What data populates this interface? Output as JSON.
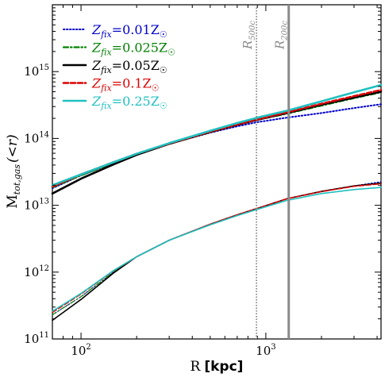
{
  "chart_data": {
    "type": "line",
    "xlabel_prefix": "R",
    "xlabel_unit": "[kpc]",
    "ylabel_main": "M",
    "ylabel_sub": "tot,gas",
    "ylabel_tail": "(<r)",
    "xscale": "log",
    "yscale": "log",
    "xlim": [
      70,
      4200
    ],
    "ylim": [
      100000000000.0,
      1e+16
    ],
    "x_ticks": [
      {
        "value": 100,
        "base": "10",
        "exp": "2"
      },
      {
        "value": 1000,
        "base": "10",
        "exp": "3"
      }
    ],
    "y_ticks": [
      {
        "value": 100000000000.0,
        "base": "10",
        "exp": "11"
      },
      {
        "value": 1000000000000.0,
        "base": "10",
        "exp": "12"
      },
      {
        "value": 10000000000000.0,
        "base": "10",
        "exp": "13"
      },
      {
        "value": 100000000000000.0,
        "base": "10",
        "exp": "14"
      },
      {
        "value": 1000000000000000.0,
        "base": "10",
        "exp": "15"
      }
    ],
    "vlines": [
      {
        "label_main": "R",
        "label_sub": "500c",
        "x": 890,
        "style": "dotted",
        "color": "#8a8a8a"
      },
      {
        "label_main": "R",
        "label_sub": "200c",
        "x": 1330,
        "style": "solid",
        "color": "#8a8a8a"
      }
    ],
    "legend_position": "upper-left",
    "x": [
      70,
      100,
      150,
      200,
      300,
      500,
      700,
      900,
      1300,
      2000,
      3000,
      4200
    ],
    "series": [
      {
        "name": "Z_fix=0.01Z☉",
        "legend_var": "Z",
        "legend_sub": "fix",
        "legend_value": "=0.01Z",
        "color": "#0000cc",
        "style": "dotted",
        "width": 2,
        "total": [
          18000000000000.0,
          28000000000000.0,
          43000000000000.0,
          58000000000000.0,
          83000000000000.0,
          122000000000000.0,
          152000000000000.0,
          175000000000000.0,
          205000000000000.0,
          240000000000000.0,
          285000000000000.0,
          325000000000000.0
        ],
        "gas": [
          230000000000.0,
          430000000000.0,
          1000000000000.0,
          1700000000000.0,
          3000000000000.0,
          5200000000000.0,
          7200000000000.0,
          9000000000000.0,
          12500000000000.0,
          16000000000000.0,
          19500000000000.0,
          22500000000000.0
        ]
      },
      {
        "name": "Z_fix=0.025Z☉",
        "legend_var": "Z",
        "legend_sub": "fix",
        "legend_value": "=0.025Z",
        "color": "#008000",
        "style": "dashdot",
        "width": 2.2,
        "total": [
          18500000000000.0,
          28000000000000.0,
          43000000000000.0,
          58000000000000.0,
          83000000000000.0,
          124000000000000.0,
          160000000000000.0,
          190000000000000.0,
          235000000000000.0,
          310000000000000.0,
          400000000000000.0,
          490000000000000.0
        ],
        "gas": [
          230000000000.0,
          430000000000.0,
          1000000000000.0,
          1700000000000.0,
          3000000000000.0,
          5200000000000.0,
          7200000000000.0,
          9000000000000.0,
          12500000000000.0,
          16000000000000.0,
          19500000000000.0,
          21500000000000.0
        ]
      },
      {
        "name": "Z_fix=0.05Z☉",
        "legend_var": "Z",
        "legend_sub": "fix",
        "legend_value": "=0.05Z",
        "color": "#000000",
        "style": "solid",
        "width": 2.6,
        "total": [
          15000000000000.0,
          25000000000000.0,
          41000000000000.0,
          57000000000000.0,
          83000000000000.0,
          125000000000000.0,
          160000000000000.0,
          190000000000000.0,
          240000000000000.0,
          320000000000000.0,
          410000000000000.0,
          500000000000000.0
        ],
        "gas": [
          190000000000.0,
          390000000000.0,
          970000000000.0,
          1700000000000.0,
          3000000000000.0,
          5200000000000.0,
          7200000000000.0,
          9000000000000.0,
          12500000000000.0,
          16200000000000.0,
          19500000000000.0,
          21500000000000.0
        ]
      },
      {
        "name": "Z_fix=0.1Z☉",
        "legend_var": "Z",
        "legend_sub": "fix",
        "legend_value": "=0.1Z",
        "color": "#dd0000",
        "style": "dashed",
        "width": 2.6,
        "total": [
          19000000000000.0,
          29000000000000.0,
          44000000000000.0,
          59000000000000.0,
          84000000000000.0,
          126000000000000.0,
          162000000000000.0,
          193000000000000.0,
          245000000000000.0,
          330000000000000.0,
          430000000000000.0,
          530000000000000.0
        ],
        "gas": [
          250000000000.0,
          470000000000.0,
          1050000000000.0,
          1700000000000.0,
          3000000000000.0,
          5200000000000.0,
          7200000000000.0,
          9000000000000.0,
          12500000000000.0,
          16000000000000.0,
          19200000000000.0,
          21000000000000.0
        ]
      },
      {
        "name": "Z_fix=0.25Z☉",
        "legend_var": "Z",
        "legend_sub": "fix",
        "legend_value": "=0.25Z",
        "color": "#20c0c0",
        "style": "solid",
        "width": 2.6,
        "total": [
          20000000000000.0,
          29000000000000.0,
          44000000000000.0,
          59000000000000.0,
          85000000000000.0,
          130000000000000.0,
          170000000000000.0,
          205000000000000.0,
          260000000000000.0,
          360000000000000.0,
          490000000000000.0,
          630000000000000.0
        ],
        "gas": [
          260000000000.0,
          480000000000.0,
          1060000000000.0,
          1700000000000.0,
          3000000000000.0,
          5100000000000.0,
          7000000000000.0,
          8700000000000.0,
          11800000000000.0,
          15000000000000.0,
          17200000000000.0,
          18500000000000.0
        ]
      }
    ]
  }
}
